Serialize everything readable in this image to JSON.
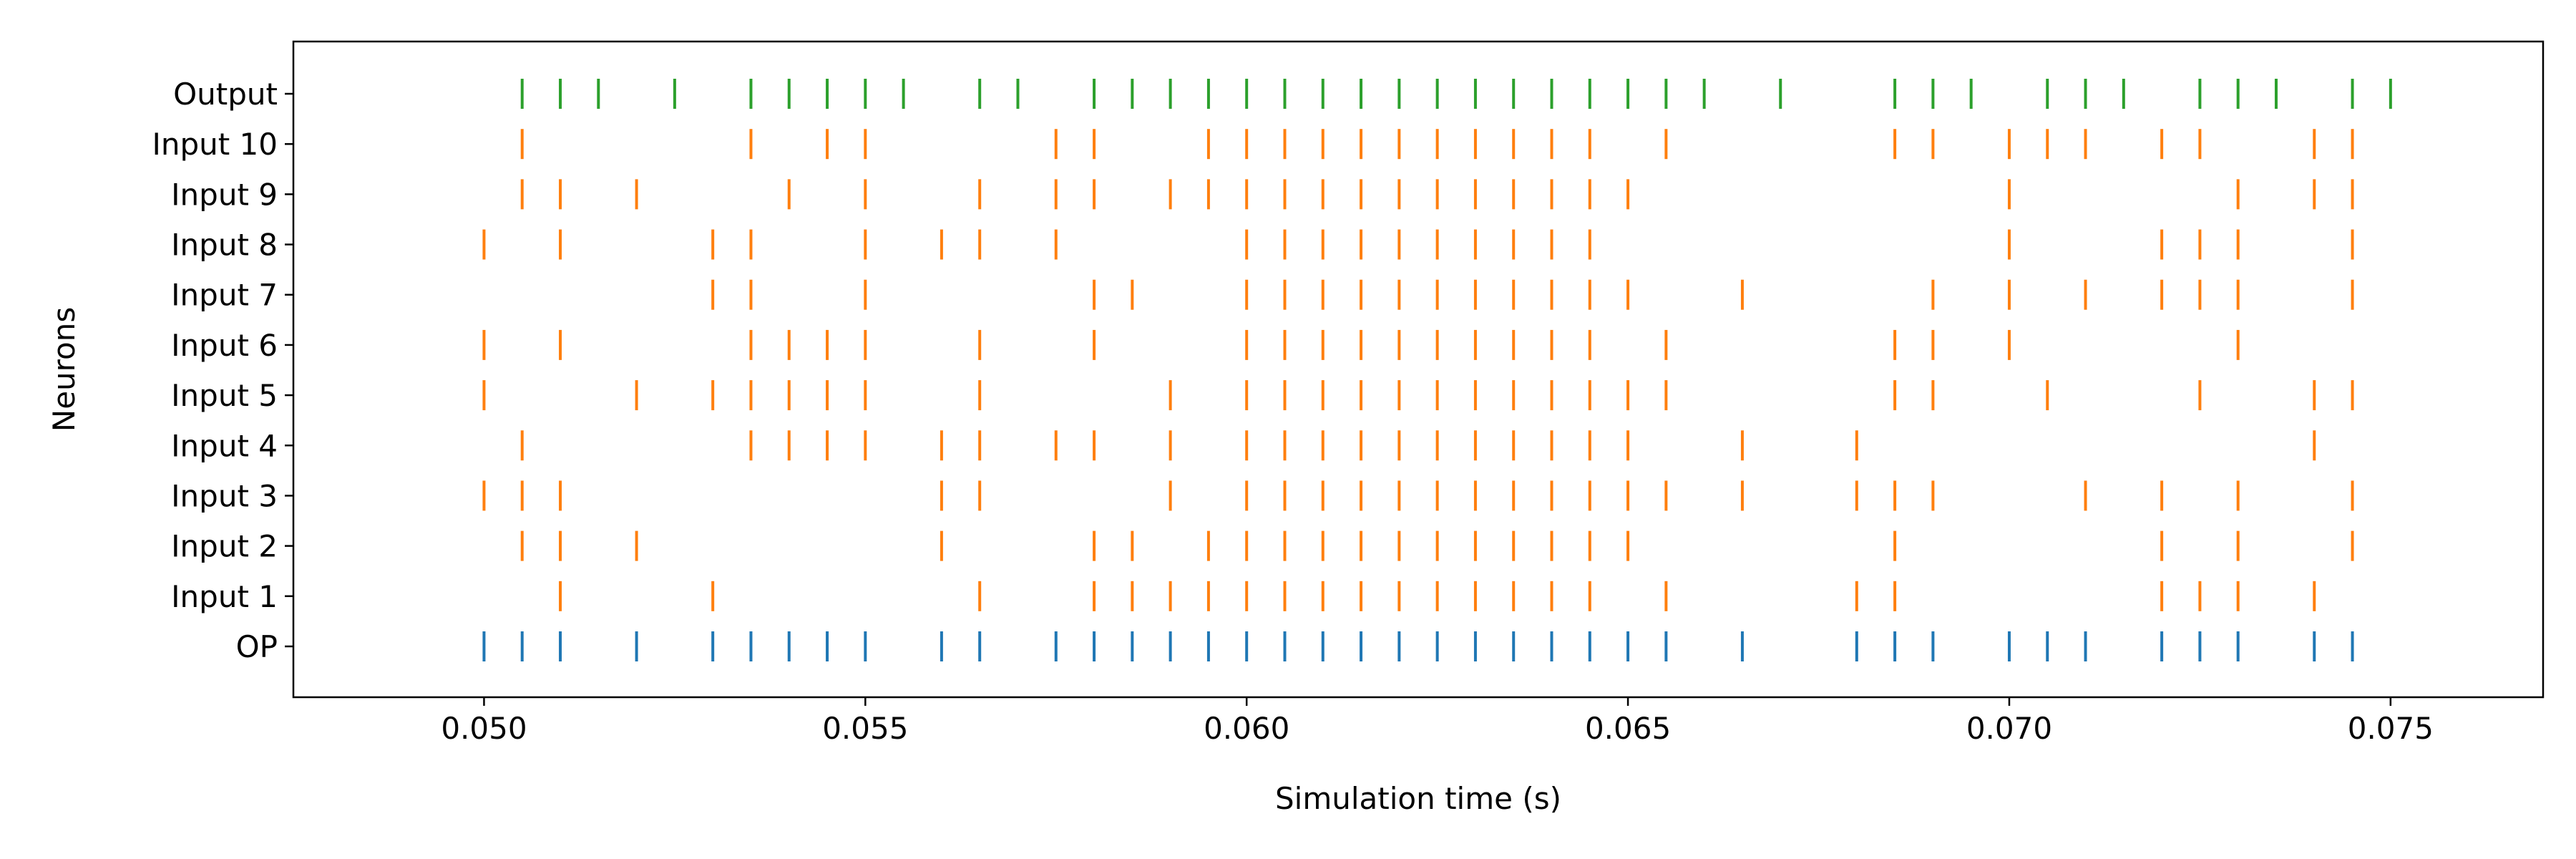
{
  "chart_data": {
    "type": "scatter",
    "subtype": "raster-eventplot",
    "title": "",
    "xlabel": "Simulation time (s)",
    "ylabel": "Neurons",
    "xlim": [
      0.0475,
      0.077
    ],
    "xticks": [
      0.05,
      0.055,
      0.06,
      0.065,
      0.07,
      0.075
    ],
    "xtick_labels": [
      "0.050",
      "0.055",
      "0.060",
      "0.065",
      "0.070",
      "0.075"
    ],
    "grid": false,
    "legend": "none",
    "categories": [
      "OP",
      "Input 1",
      "Input 2",
      "Input 3",
      "Input 4",
      "Input 5",
      "Input 6",
      "Input 7",
      "Input 8",
      "Input 9",
      "Input 10",
      "Output"
    ],
    "series": [
      {
        "label": "OP",
        "color": "#1f77b4",
        "spikes": [
          0.05,
          0.0505,
          0.051,
          0.052,
          0.053,
          0.0535,
          0.054,
          0.0545,
          0.055,
          0.056,
          0.0565,
          0.0575,
          0.058,
          0.0585,
          0.059,
          0.0595,
          0.06,
          0.0605,
          0.061,
          0.0615,
          0.062,
          0.0625,
          0.063,
          0.0635,
          0.064,
          0.0645,
          0.065,
          0.0655,
          0.0665,
          0.068,
          0.0685,
          0.069,
          0.07,
          0.0705,
          0.071,
          0.072,
          0.0725,
          0.073,
          0.074,
          0.0745
        ]
      },
      {
        "label": "Input 1",
        "color": "#ff7f0e",
        "spikes": [
          0.051,
          0.053,
          0.0565,
          0.058,
          0.0585,
          0.059,
          0.0595,
          0.06,
          0.0605,
          0.061,
          0.0615,
          0.062,
          0.0625,
          0.063,
          0.0635,
          0.064,
          0.0645,
          0.0655,
          0.068,
          0.0685,
          0.072,
          0.0725,
          0.073,
          0.074
        ]
      },
      {
        "label": "Input 2",
        "color": "#ff7f0e",
        "spikes": [
          0.0505,
          0.051,
          0.052,
          0.056,
          0.058,
          0.0585,
          0.0595,
          0.06,
          0.0605,
          0.061,
          0.0615,
          0.062,
          0.0625,
          0.063,
          0.0635,
          0.064,
          0.0645,
          0.065,
          0.0685,
          0.072,
          0.073,
          0.0745
        ]
      },
      {
        "label": "Input 3",
        "color": "#ff7f0e",
        "spikes": [
          0.05,
          0.0505,
          0.051,
          0.056,
          0.0565,
          0.059,
          0.06,
          0.0605,
          0.061,
          0.0615,
          0.062,
          0.0625,
          0.063,
          0.0635,
          0.064,
          0.0645,
          0.065,
          0.0655,
          0.0665,
          0.068,
          0.0685,
          0.069,
          0.071,
          0.072,
          0.073,
          0.0745
        ]
      },
      {
        "label": "Input 4",
        "color": "#ff7f0e",
        "spikes": [
          0.0505,
          0.0535,
          0.054,
          0.0545,
          0.055,
          0.056,
          0.0565,
          0.0575,
          0.058,
          0.059,
          0.06,
          0.0605,
          0.061,
          0.0615,
          0.062,
          0.0625,
          0.063,
          0.0635,
          0.064,
          0.0645,
          0.065,
          0.0665,
          0.068,
          0.074
        ]
      },
      {
        "label": "Input 5",
        "color": "#ff7f0e",
        "spikes": [
          0.05,
          0.052,
          0.053,
          0.0535,
          0.054,
          0.0545,
          0.055,
          0.0565,
          0.059,
          0.06,
          0.0605,
          0.061,
          0.0615,
          0.062,
          0.0625,
          0.063,
          0.0635,
          0.064,
          0.0645,
          0.065,
          0.0655,
          0.0685,
          0.069,
          0.0705,
          0.0725,
          0.074,
          0.0745
        ]
      },
      {
        "label": "Input 6",
        "color": "#ff7f0e",
        "spikes": [
          0.05,
          0.051,
          0.0535,
          0.054,
          0.0545,
          0.055,
          0.0565,
          0.058,
          0.06,
          0.0605,
          0.061,
          0.0615,
          0.062,
          0.0625,
          0.063,
          0.0635,
          0.064,
          0.0645,
          0.0655,
          0.0685,
          0.069,
          0.07,
          0.073
        ]
      },
      {
        "label": "Input 7",
        "color": "#ff7f0e",
        "spikes": [
          0.053,
          0.0535,
          0.055,
          0.058,
          0.0585,
          0.06,
          0.0605,
          0.061,
          0.0615,
          0.062,
          0.0625,
          0.063,
          0.0635,
          0.064,
          0.0645,
          0.065,
          0.0665,
          0.069,
          0.07,
          0.071,
          0.072,
          0.0725,
          0.073,
          0.0745
        ]
      },
      {
        "label": "Input 8",
        "color": "#ff7f0e",
        "spikes": [
          0.05,
          0.051,
          0.053,
          0.0535,
          0.055,
          0.056,
          0.0565,
          0.0575,
          0.06,
          0.0605,
          0.061,
          0.0615,
          0.062,
          0.0625,
          0.063,
          0.0635,
          0.064,
          0.0645,
          0.07,
          0.072,
          0.0725,
          0.073,
          0.0745
        ]
      },
      {
        "label": "Input 9",
        "color": "#ff7f0e",
        "spikes": [
          0.0505,
          0.051,
          0.052,
          0.054,
          0.055,
          0.0565,
          0.0575,
          0.058,
          0.059,
          0.0595,
          0.06,
          0.0605,
          0.061,
          0.0615,
          0.062,
          0.0625,
          0.063,
          0.0635,
          0.064,
          0.0645,
          0.065,
          0.07,
          0.073,
          0.074,
          0.0745
        ]
      },
      {
        "label": "Input 10",
        "color": "#ff7f0e",
        "spikes": [
          0.0505,
          0.0535,
          0.0545,
          0.055,
          0.0575,
          0.058,
          0.0595,
          0.06,
          0.0605,
          0.061,
          0.0615,
          0.062,
          0.0625,
          0.063,
          0.0635,
          0.064,
          0.0645,
          0.0655,
          0.0685,
          0.069,
          0.07,
          0.0705,
          0.071,
          0.072,
          0.0725,
          0.074,
          0.0745
        ]
      },
      {
        "label": "Output",
        "color": "#2ca02c",
        "spikes": [
          0.0505,
          0.051,
          0.0515,
          0.0525,
          0.0535,
          0.054,
          0.0545,
          0.055,
          0.0555,
          0.0565,
          0.057,
          0.058,
          0.0585,
          0.059,
          0.0595,
          0.06,
          0.0605,
          0.061,
          0.0615,
          0.062,
          0.0625,
          0.063,
          0.0635,
          0.064,
          0.0645,
          0.065,
          0.0655,
          0.066,
          0.067,
          0.0685,
          0.069,
          0.0695,
          0.0705,
          0.071,
          0.0715,
          0.0725,
          0.073,
          0.0735,
          0.0745,
          0.075
        ]
      }
    ]
  }
}
